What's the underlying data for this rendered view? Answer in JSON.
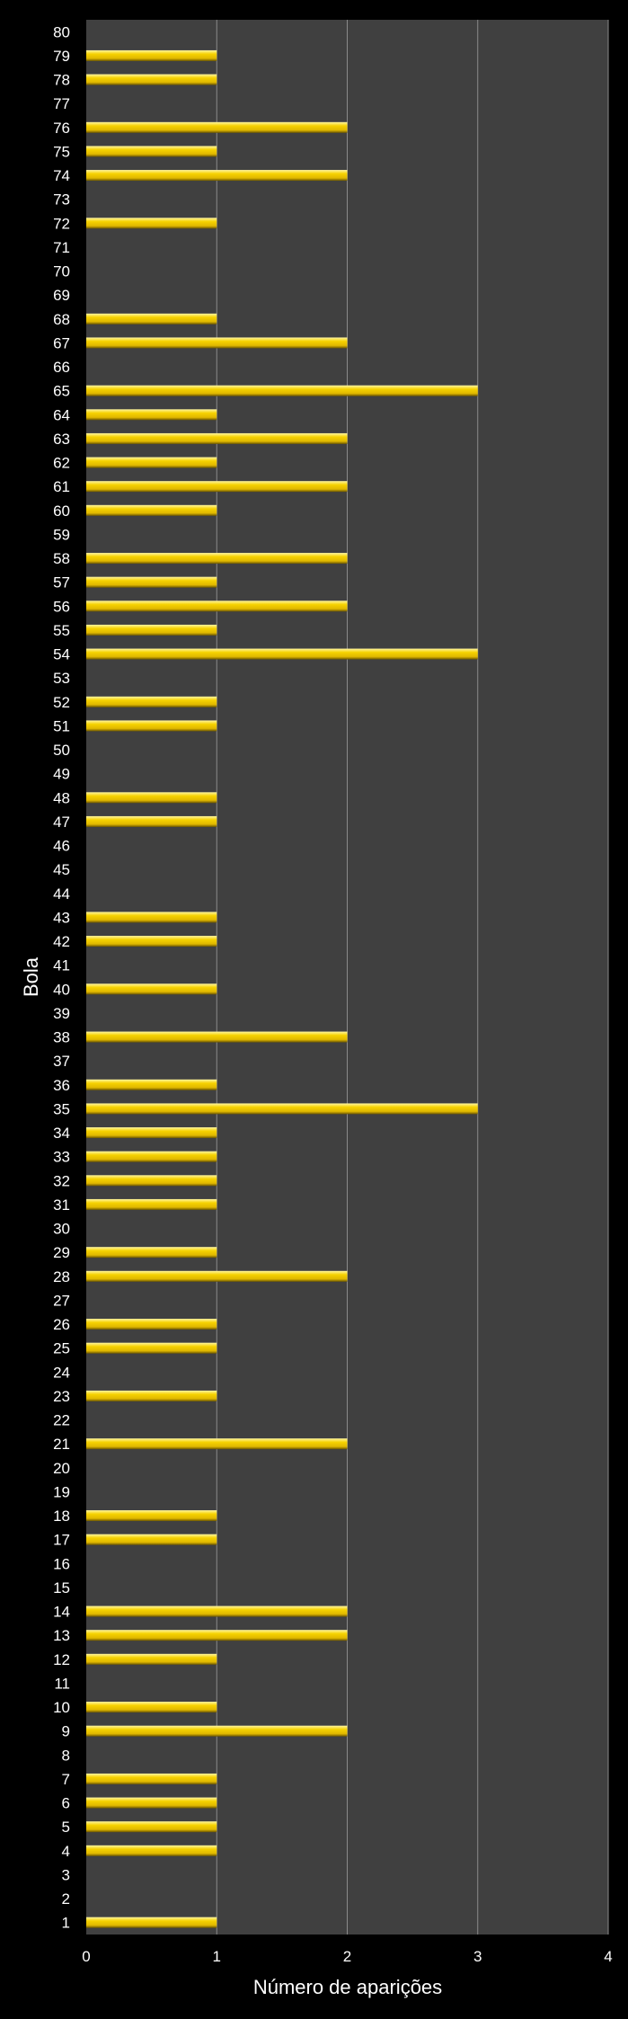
{
  "chart_data": {
    "type": "bar",
    "orientation": "horizontal",
    "xlabel": "Número de aparições",
    "ylabel": "Bola",
    "xlim": [
      0,
      4
    ],
    "xticks": [
      0,
      1,
      2,
      3,
      4
    ],
    "grid": "vertical",
    "legend": "none",
    "categories": [
      "1",
      "2",
      "3",
      "4",
      "5",
      "6",
      "7",
      "8",
      "9",
      "10",
      "11",
      "12",
      "13",
      "14",
      "15",
      "16",
      "17",
      "18",
      "19",
      "20",
      "21",
      "22",
      "23",
      "24",
      "25",
      "26",
      "27",
      "28",
      "29",
      "30",
      "31",
      "32",
      "33",
      "34",
      "35",
      "36",
      "37",
      "38",
      "39",
      "40",
      "41",
      "42",
      "43",
      "44",
      "45",
      "46",
      "47",
      "48",
      "49",
      "50",
      "51",
      "52",
      "53",
      "54",
      "55",
      "56",
      "57",
      "58",
      "59",
      "60",
      "61",
      "62",
      "63",
      "64",
      "65",
      "66",
      "67",
      "68",
      "69",
      "70",
      "71",
      "72",
      "73",
      "74",
      "75",
      "76",
      "77",
      "78",
      "79",
      "80"
    ],
    "values": [
      1,
      0,
      0,
      1,
      1,
      1,
      1,
      0,
      2,
      1,
      0,
      1,
      2,
      2,
      0,
      0,
      1,
      1,
      0,
      0,
      2,
      0,
      1,
      0,
      1,
      1,
      0,
      2,
      1,
      0,
      1,
      1,
      1,
      1,
      3,
      1,
      0,
      2,
      0,
      1,
      0,
      1,
      1,
      0,
      0,
      0,
      1,
      1,
      0,
      0,
      1,
      1,
      0,
      3,
      1,
      2,
      1,
      2,
      0,
      1,
      2,
      1,
      2,
      1,
      3,
      0,
      2,
      1,
      0,
      0,
      0,
      1,
      0,
      2,
      1,
      2,
      0,
      1,
      1,
      0
    ]
  },
  "colors": {
    "background": "#000000",
    "plot_area": "#404040",
    "grid": "#8a8a8a",
    "bar_fill": "#f6d200",
    "bar_highlight": "#fff6a0",
    "bar_shadow": "#6b5600",
    "text": "#ffffff"
  }
}
